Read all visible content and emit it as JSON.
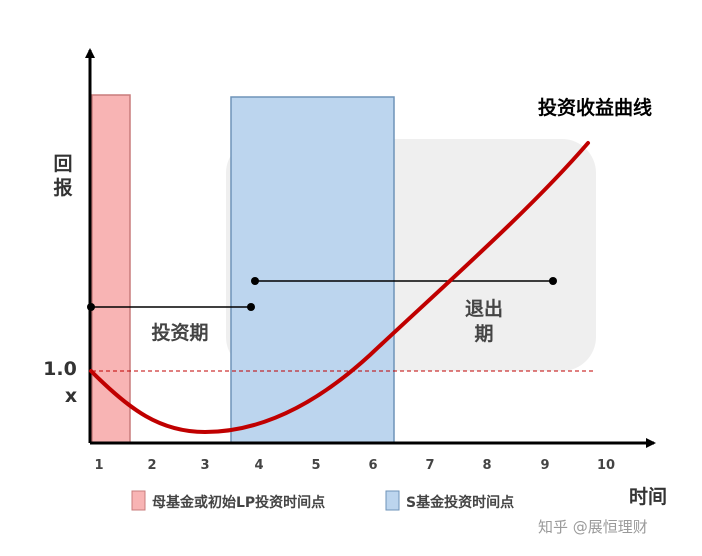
{
  "y_axis_label": [
    "回",
    "报"
  ],
  "x_axis_label": "时间",
  "curve_label": "投资收益曲线",
  "invest_period_label": "投资期",
  "exit_period_label": [
    "退出",
    "期"
  ],
  "baseline_label": [
    "1.0",
    "x"
  ],
  "x_ticks": [
    "1",
    "2",
    "3",
    "4",
    "5",
    "6",
    "7",
    "8",
    "9",
    "10"
  ],
  "legend": [
    {
      "label": "母基金或初始LP投资时间点",
      "color": "#f8b4b4"
    },
    {
      "label": "S基金投资时间点",
      "color": "#bcd5ee"
    }
  ],
  "watermark": "知乎 @展恒理财",
  "colors": {
    "curve": "#c00000",
    "baseline": "#c00000",
    "pink_band": "#f8b4b4",
    "blue_band": "#bcd5ee",
    "exit_box": "#efefef",
    "axis": "#000000"
  }
}
